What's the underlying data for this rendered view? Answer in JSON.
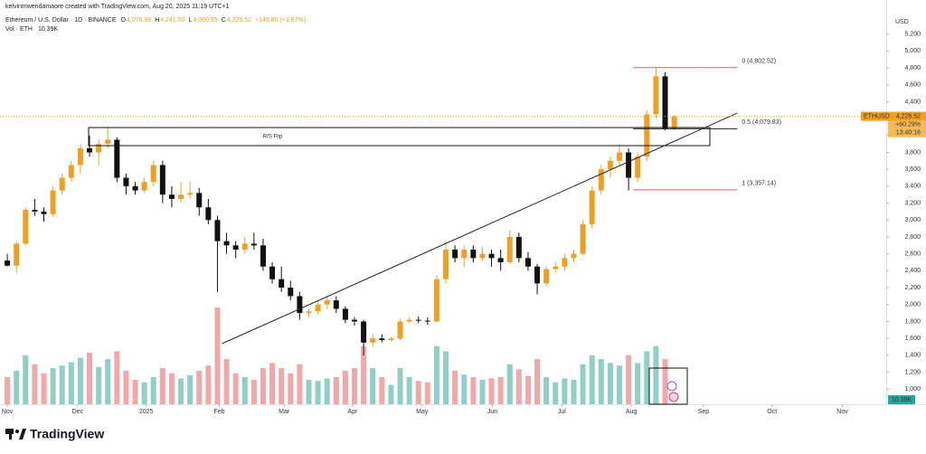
{
  "header": {
    "author_line": "kelvinmwendamaore created with TradingView.com, Aug 20, 2025 11:19 UTC+1",
    "symbol": "Ethereum / U.S. Dollar · 1D · BINANCE",
    "ohlc": [
      {
        "k": "O",
        "v": "4,076.68"
      },
      {
        "k": "H",
        "v": "4,241.50"
      },
      {
        "k": "L",
        "v": "4,060.95"
      },
      {
        "k": "C",
        "v": "4,226.52"
      }
    ],
    "change": "+149.80 (+3.67%)",
    "vol_label": "Vol · ETH",
    "vol": "10.39K"
  },
  "footer": {
    "brand": "TradingView"
  },
  "chart_data": {
    "type": "candlestick",
    "currency": "USD",
    "symbol_tag": "ETHUSD",
    "last_price": {
      "value": 4226.52,
      "label": "4,226.52"
    },
    "change_pct": "+60.29%",
    "countdown": "13:40:16",
    "volume_label": "10.39K",
    "up_color": "#f0a020",
    "down_color": "#111111",
    "vol_up_color": "#8fcfc6",
    "vol_down_color": "#f2a8a6",
    "open": [
      2520,
      2460,
      2720,
      3120,
      3100,
      3070,
      3350,
      3500,
      3650,
      3850,
      3800,
      3900,
      3950,
      3500,
      3400,
      3350,
      3450,
      3650,
      3300,
      3250,
      3300,
      3320,
      3150,
      3000,
      2750,
      2700,
      2650,
      2720,
      2700,
      2450,
      2300,
      2200,
      2100,
      1900,
      1920,
      2000,
      2050,
      1950,
      1820,
      1800,
      1550,
      1600,
      1580,
      1600,
      1800,
      1820,
      1810,
      1800,
      2300,
      2650,
      2550,
      2650,
      2550,
      2600,
      2550,
      2500,
      2800,
      2550,
      2450,
      2250,
      2420,
      2450,
      2550,
      2600,
      2950,
      3350,
      3600,
      3700,
      3800,
      3500,
      3750,
      4250,
      4700,
      4076.68
    ],
    "high": [
      2600,
      2750,
      3150,
      3250,
      3150,
      3400,
      3550,
      3700,
      3900,
      4000,
      3950,
      4100,
      3980,
      3550,
      3450,
      3500,
      3700,
      3700,
      3400,
      3450,
      3450,
      3380,
      3250,
      3050,
      2850,
      2750,
      2800,
      2850,
      2780,
      2500,
      2450,
      2280,
      2150,
      1950,
      2050,
      2100,
      2100,
      1980,
      1850,
      1820,
      1650,
      1650,
      1620,
      1830,
      1850,
      1860,
      1850,
      2350,
      2750,
      2700,
      2700,
      2700,
      2680,
      2650,
      2650,
      2880,
      2850,
      2620,
      2480,
      2450,
      2500,
      2600,
      2650,
      3000,
      3400,
      3650,
      3750,
      3900,
      3850,
      3800,
      4300,
      4802.52,
      4750,
      4241.5
    ],
    "low": [
      2450,
      2380,
      2700,
      3050,
      2980,
      3040,
      3300,
      3450,
      3550,
      3750,
      3650,
      3850,
      3450,
      3300,
      3300,
      3320,
      3400,
      3200,
      3150,
      3200,
      3250,
      3050,
      2950,
      2150,
      2600,
      2550,
      2600,
      2650,
      2400,
      2250,
      2150,
      2050,
      1820,
      1850,
      1880,
      1950,
      1900,
      1780,
      1750,
      1400,
      1500,
      1550,
      1560,
      1580,
      1780,
      1780,
      1760,
      1790,
      2250,
      2500,
      2450,
      2500,
      2520,
      2450,
      2400,
      2480,
      2500,
      2400,
      2120,
      2220,
      2380,
      2400,
      2500,
      2580,
      2900,
      3300,
      3500,
      3650,
      3350,
      3450,
      3700,
      4200,
      4060.95,
      4060.95
    ],
    "close": [
      2460,
      2720,
      3120,
      3100,
      3070,
      3350,
      3500,
      3650,
      3850,
      3800,
      3900,
      3950,
      3500,
      3400,
      3350,
      3450,
      3650,
      3300,
      3250,
      3300,
      3320,
      3150,
      3000,
      2750,
      2700,
      2650,
      2720,
      2700,
      2450,
      2300,
      2200,
      2100,
      1900,
      1920,
      2000,
      2050,
      1950,
      1820,
      1800,
      1550,
      1600,
      1580,
      1600,
      1800,
      1820,
      1810,
      1800,
      2300,
      2650,
      2550,
      2650,
      2550,
      2600,
      2550,
      2500,
      2800,
      2550,
      2450,
      2250,
      2420,
      2450,
      2550,
      2600,
      2950,
      3350,
      3600,
      3700,
      3800,
      3500,
      3750,
      4250,
      4700,
      4076.68,
      4226.52
    ],
    "volume": [
      420,
      520,
      760,
      620,
      480,
      560,
      600,
      650,
      720,
      800,
      580,
      700,
      820,
      520,
      380,
      340,
      420,
      560,
      480,
      400,
      450,
      520,
      600,
      1500,
      700,
      480,
      420,
      380,
      560,
      640,
      560,
      480,
      620,
      380,
      360,
      400,
      420,
      520,
      560,
      900,
      560,
      420,
      300,
      560,
      420,
      360,
      340,
      900,
      820,
      520,
      460,
      420,
      380,
      400,
      420,
      620,
      540,
      440,
      700,
      420,
      340,
      400,
      380,
      620,
      760,
      700,
      640,
      600,
      760,
      640,
      820,
      900,
      700,
      10.39
    ],
    "vlim": [
      0,
      1500
    ],
    "ylim": [
      821,
      5442
    ],
    "yticks": [
      {
        "value": 1000,
        "label": "1,000"
      },
      {
        "value": 1200,
        "label": "1,200"
      },
      {
        "value": 1400,
        "label": "1,400"
      },
      {
        "value": 1600,
        "label": "1,600"
      },
      {
        "value": 1800,
        "label": "1,800"
      },
      {
        "value": 2000,
        "label": "2,000"
      },
      {
        "value": 2200,
        "label": "2,200"
      },
      {
        "value": 2400,
        "label": "2,400"
      },
      {
        "value": 2600,
        "label": "2,600"
      },
      {
        "value": 2800,
        "label": "2,800"
      },
      {
        "value": 3000,
        "label": "3,000"
      },
      {
        "value": 3200,
        "label": "3,200"
      },
      {
        "value": 3400,
        "label": "3,400"
      },
      {
        "value": 3600,
        "label": "3,600"
      },
      {
        "value": 3800,
        "label": "3,800"
      },
      {
        "value": 4000,
        "label": "4,000"
      },
      {
        "value": 4200,
        "label": "4,200"
      },
      {
        "value": 4400,
        "label": "4,400"
      },
      {
        "value": 4600,
        "label": "4,600"
      },
      {
        "value": 4800,
        "label": "4,800"
      },
      {
        "value": 5000,
        "label": "5,000"
      },
      {
        "value": 5200,
        "label": "5,200"
      }
    ],
    "xlim": [
      -0.8,
      96.2
    ],
    "xticks": [
      {
        "value": 0,
        "label": "Nov"
      },
      {
        "value": 7.7,
        "label": "Dec"
      },
      {
        "value": 15.2,
        "label": "2025"
      },
      {
        "value": 23.2,
        "label": "Feb"
      },
      {
        "value": 30.3,
        "label": "Mar"
      },
      {
        "value": 37.8,
        "label": "Apr"
      },
      {
        "value": 45.4,
        "label": "May"
      },
      {
        "value": 53.1,
        "label": "Jun"
      },
      {
        "value": 60.7,
        "label": "Jul"
      },
      {
        "value": 68.3,
        "label": "Aug"
      },
      {
        "value": 76.2,
        "label": "Sep"
      },
      {
        "value": 83.7,
        "label": "Oct"
      },
      {
        "value": 91.4,
        "label": "Nov"
      }
    ],
    "grid": false,
    "trendline": {
      "x": [
        23.5,
        79.9
      ],
      "y": [
        1538,
        4265
      ]
    },
    "zone": {
      "label": "R/S Flip",
      "x": [
        8.9,
        76.9
      ],
      "y": [
        3880,
        4094
      ]
    },
    "fib_x": [
      68.5,
      79.9
    ],
    "fib": [
      {
        "label": "0 (4,802.52)",
        "value": 4802.52,
        "color": "#e05a6a"
      },
      {
        "label": "0.5 (4,079.83)",
        "value": 4079.83,
        "color": "#222222"
      },
      {
        "label": "1 (3,357.14)",
        "value": 3357.14,
        "color": "#e05a6a"
      }
    ]
  }
}
